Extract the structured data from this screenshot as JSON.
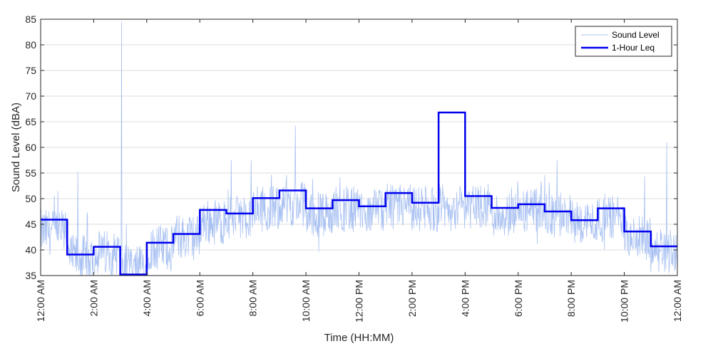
{
  "chart_data": {
    "type": "line",
    "title": "",
    "xlabel": "Time (HH:MM)",
    "ylabel": "Sound Level (dBA)",
    "ylim": [
      35,
      85
    ],
    "y_ticks": [
      35,
      40,
      45,
      50,
      55,
      60,
      65,
      70,
      75,
      80,
      85
    ],
    "x_range_hours": [
      0,
      24
    ],
    "x_ticks": [
      {
        "hour": 0,
        "label": "12:00 AM"
      },
      {
        "hour": 2,
        "label": "2:00 AM"
      },
      {
        "hour": 4,
        "label": "4:00 AM"
      },
      {
        "hour": 6,
        "label": "6:00 AM"
      },
      {
        "hour": 8,
        "label": "8:00 AM"
      },
      {
        "hour": 10,
        "label": "10:00 AM"
      },
      {
        "hour": 12,
        "label": "12:00 PM"
      },
      {
        "hour": 14,
        "label": "2:00 PM"
      },
      {
        "hour": 16,
        "label": "4:00 PM"
      },
      {
        "hour": 18,
        "label": "6:00 PM"
      },
      {
        "hour": 20,
        "label": "8:00 PM"
      },
      {
        "hour": 22,
        "label": "10:00 PM"
      },
      {
        "hour": 24,
        "label": "12:00 AM"
      }
    ],
    "grid": "horizontal",
    "legend_position": "top-right",
    "series": [
      {
        "name": "Sound Level",
        "style": "thin-line",
        "color": "#a9c1f2",
        "hourly_mean": [
          43.5,
          38.5,
          39.5,
          36.5,
          40.5,
          42.5,
          45.5,
          46.5,
          48.0,
          49.0,
          47.0,
          48.0,
          47.5,
          48.5,
          48.0,
          48.0,
          48.5,
          47.0,
          47.5,
          46.5,
          45.5,
          46.5,
          42.5,
          40.0
        ],
        "peaks": [
          {
            "hour": 3.05,
            "value": 84.5
          },
          {
            "hour": 9.6,
            "value": 64.2
          },
          {
            "hour": 23.6,
            "value": 61.0
          },
          {
            "hour": 1.4,
            "value": 55.3
          }
        ]
      },
      {
        "name": "1-Hour Leq",
        "style": "step",
        "color": "#0000ee",
        "hours": [
          0,
          1,
          2,
          3,
          4,
          5,
          6,
          7,
          8,
          9,
          10,
          11,
          12,
          13,
          14,
          15,
          16,
          17,
          18,
          19,
          20,
          21,
          22,
          23
        ],
        "values": [
          45.9,
          39.1,
          40.6,
          35.2,
          41.4,
          43.1,
          47.8,
          47.1,
          50.1,
          51.6,
          48.1,
          49.7,
          48.5,
          51.1,
          49.2,
          66.8,
          50.5,
          48.2,
          48.9,
          47.5,
          45.8,
          48.1,
          43.6,
          40.7
        ]
      }
    ]
  },
  "colors": {
    "grid": "#dcdcdc",
    "axis": "#262626",
    "raw_series": "#a9c1f2",
    "leq_series": "#0000ee"
  }
}
